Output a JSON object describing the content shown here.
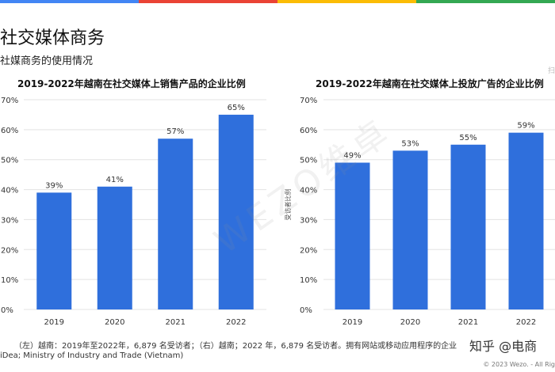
{
  "header": {
    "title": "社交媒体商务",
    "subtitle": "社媒商务的使用情况",
    "corner_mark": "扫"
  },
  "colors": {
    "bar": "#2f6fdc",
    "grid": "#e3e3e3",
    "stripe": [
      "#4285f4",
      "#ea4335",
      "#fbbc05",
      "#34a853"
    ]
  },
  "chart_data": [
    {
      "type": "bar",
      "title": "2019-2022年越南在社交媒体上销售产品的企业比例",
      "categories": [
        "2019",
        "2020",
        "2021",
        "2022"
      ],
      "values": [
        39,
        41,
        57,
        65
      ],
      "value_labels": [
        "39%",
        "41%",
        "57%",
        "65%"
      ],
      "ylim": [
        0,
        70
      ],
      "yticks": [
        "0%",
        "10%",
        "20%",
        "30%",
        "40%",
        "50%",
        "60%",
        "70%"
      ],
      "ylabel": "",
      "grid": true
    },
    {
      "type": "bar",
      "title": "2019-2022年越南在社交媒体上投放广告的企业比例",
      "categories": [
        "2019",
        "2020",
        "2021",
        "2022"
      ],
      "values": [
        49,
        53,
        55,
        59
      ],
      "value_labels": [
        "49%",
        "53%",
        "55%",
        "59%"
      ],
      "ylim": [
        0,
        70
      ],
      "yticks": [
        "0%",
        "10%",
        "20%",
        "30%",
        "40%",
        "50%",
        "60%",
        "70%"
      ],
      "ylabel": "受访者比例",
      "grid": true
    }
  ],
  "footer": {
    "note": "（左）越南：2019年至2022年，6,879 名受访者；（右）越南；2022 年，6,879 名受访者。拥有网站或移动应用程序的企业",
    "source": "iDea; Ministry of Industry and Trade (Vietnam)",
    "copyright": "© 2023 Wezo. - All Rig",
    "brand_tag": "知乎 @电商"
  },
  "watermark": "WEZO维卓"
}
